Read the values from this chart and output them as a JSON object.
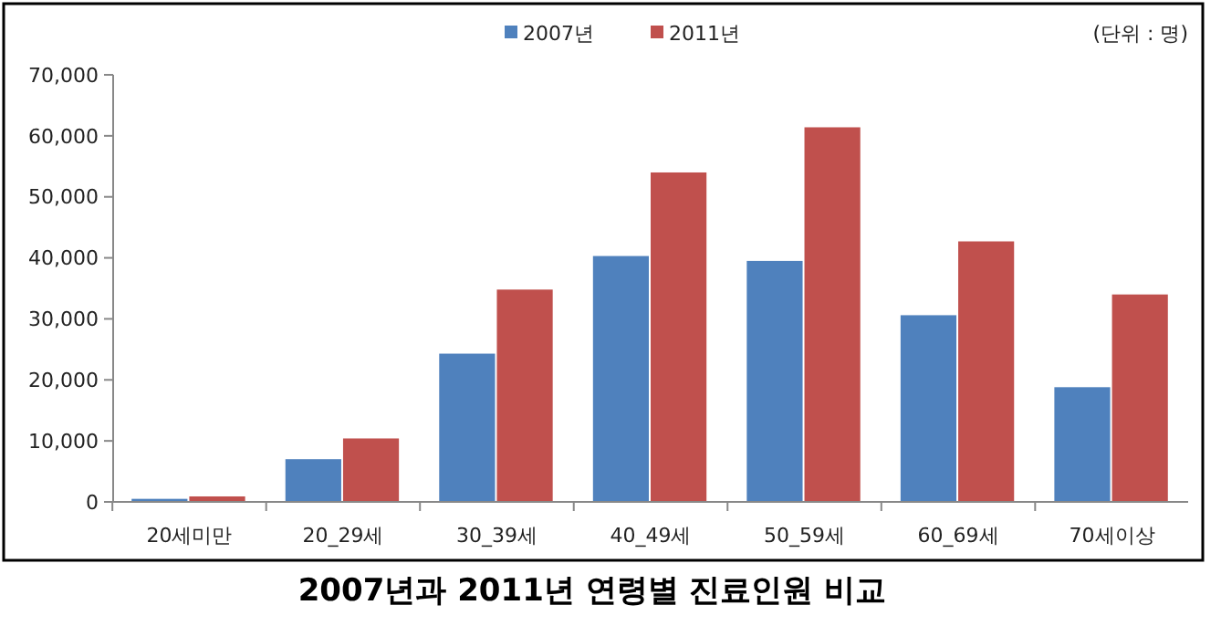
{
  "chart_data": {
    "type": "bar",
    "title": "2007년과 2011년 연령별 진료인원 비교",
    "annotations": [
      "(단위 : 명)"
    ],
    "categories": [
      "20세미만",
      "20_29세",
      "30_39세",
      "40_49세",
      "50_59세",
      "60_69세",
      "70세이상"
    ],
    "series": [
      {
        "name": "2007년",
        "color": "#4f81bd",
        "values": [
          500,
          7000,
          24300,
          40300,
          39500,
          30600,
          18800
        ]
      },
      {
        "name": "2011년",
        "color": "#c0504d",
        "values": [
          900,
          10400,
          34800,
          54000,
          61400,
          42700,
          34000
        ]
      }
    ],
    "ylim": [
      0,
      70000
    ],
    "yticks": [
      {
        "value": 0,
        "label": "0"
      },
      {
        "value": 10000,
        "label": "10,000"
      },
      {
        "value": 20000,
        "label": "20,000"
      },
      {
        "value": 30000,
        "label": "30,000"
      },
      {
        "value": 40000,
        "label": "40,000"
      },
      {
        "value": 50000,
        "label": "50,000"
      },
      {
        "value": 60000,
        "label": "60,000"
      },
      {
        "value": 70000,
        "label": "70,000"
      }
    ],
    "grid": false,
    "legend": "top"
  }
}
